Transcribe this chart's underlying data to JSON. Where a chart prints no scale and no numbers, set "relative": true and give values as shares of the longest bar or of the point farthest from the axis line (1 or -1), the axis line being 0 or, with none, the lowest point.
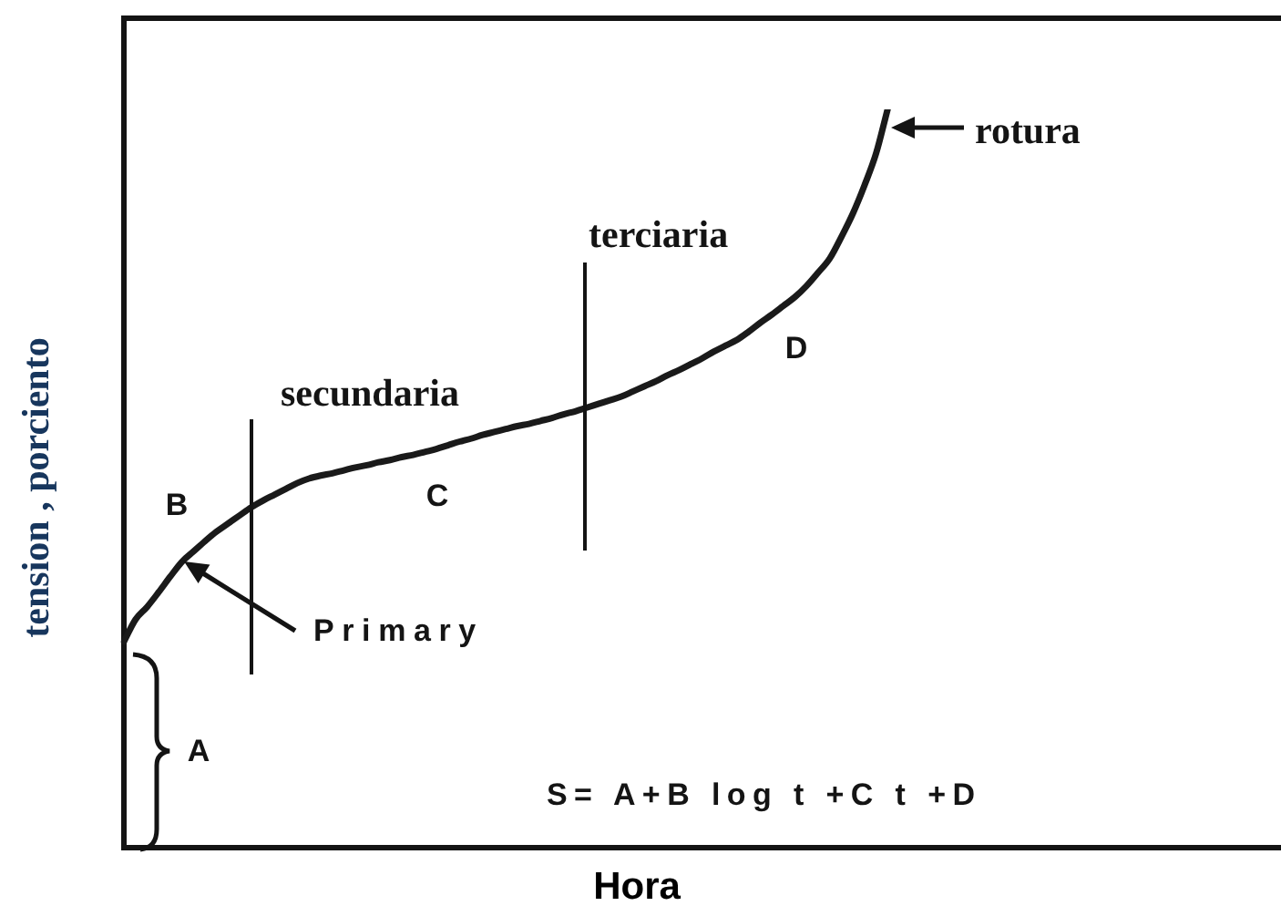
{
  "chart_data": {
    "type": "line",
    "xlabel": "Hora",
    "ylabel": "tension , porciento",
    "categories": [
      null,
      null,
      null,
      null,
      null,
      null,
      null,
      null,
      null,
      null,
      null,
      null,
      null,
      null,
      null,
      null,
      null,
      null,
      null,
      null,
      null,
      null,
      null,
      null,
      null,
      null,
      null,
      null,
      null,
      null,
      null,
      null,
      null,
      null,
      null,
      null,
      null,
      null,
      null,
      null,
      null,
      null,
      null,
      null,
      null,
      null,
      null,
      null,
      null,
      null,
      null,
      null,
      null,
      null,
      null,
      null,
      null,
      null,
      null,
      null,
      null,
      null,
      null,
      null,
      null,
      null,
      null,
      null,
      null,
      null,
      null,
      null,
      null,
      null,
      null,
      null,
      null,
      null,
      null,
      null,
      null,
      null,
      null,
      null,
      null,
      null,
      null,
      null,
      null,
      null,
      null,
      null,
      null,
      null,
      null,
      null,
      null,
      null,
      null,
      null,
      null
    ],
    "series": [
      {
        "color": "#1a1a1a",
        "values": [
          0.279,
          0.309,
          0.326,
          0.346,
          0.367,
          0.387,
          0.401,
          0.415,
          0.428,
          0.439,
          0.45,
          0.461,
          0.47,
          0.478,
          0.486,
          0.494,
          0.5,
          0.504,
          0.507,
          0.511,
          0.515,
          0.518,
          0.522,
          0.525,
          0.529,
          0.532,
          0.536,
          0.54,
          0.545,
          0.55,
          0.554,
          0.559,
          0.563,
          0.567,
          0.571,
          0.574,
          0.578,
          0.582,
          0.587,
          0.591,
          0.596,
          0.601,
          0.606,
          0.611,
          0.618,
          0.625,
          0.632,
          0.64,
          0.647,
          0.655,
          0.663,
          0.672,
          0.68,
          0.688,
          0.699,
          0.711,
          0.722,
          0.734,
          0.746,
          0.761,
          0.779,
          0.798,
          0.827,
          0.859,
          0.897,
          0.94,
          1,
          null,
          null,
          null,
          null,
          null,
          null,
          null,
          null,
          null,
          null,
          null,
          null,
          null,
          null,
          null,
          null,
          null,
          null,
          null,
          null,
          null,
          null,
          null,
          null,
          null,
          null,
          null,
          null,
          null,
          null,
          null,
          null,
          null,
          null
        ]
      }
    ],
    "relative": true,
    "marker": "none",
    "line_style": "solid",
    "legend": false,
    "annotations": [
      "rotura",
      "terciaria",
      "D",
      "secundaria",
      "C",
      "B",
      "Primary",
      "A",
      "S= A+B log t +C t +D"
    ]
  }
}
